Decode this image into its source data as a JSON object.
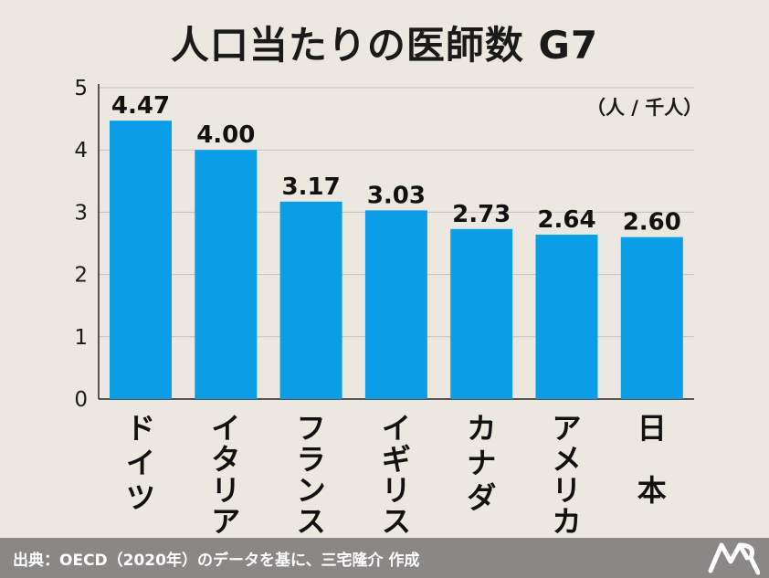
{
  "chart_data": {
    "type": "bar",
    "title": "人口当たりの医師数 G7",
    "unit_label": "（人 / 千人）",
    "categories": [
      "ドイツ",
      "イタリア",
      "フランス",
      "イギリス",
      "カナダ",
      "アメリカ",
      "日本"
    ],
    "values": [
      4.47,
      4.0,
      3.17,
      3.03,
      2.73,
      2.64,
      2.6
    ],
    "value_labels": [
      "4.47",
      "4.00",
      "3.17",
      "3.03",
      "2.73",
      "2.64",
      "2.60"
    ],
    "y_ticks": [
      "0",
      "1",
      "2",
      "3",
      "4",
      "5"
    ],
    "ylim": [
      0,
      5
    ],
    "grid": true,
    "bar_color": "#0a9ee6"
  },
  "footer": {
    "source": "出典：OECD（2020年）のデータを基に、三宅隆介 作成"
  },
  "colors": {
    "background": "#ece8e0",
    "footer": "#8a8886",
    "grid": "#c4c0b8"
  }
}
